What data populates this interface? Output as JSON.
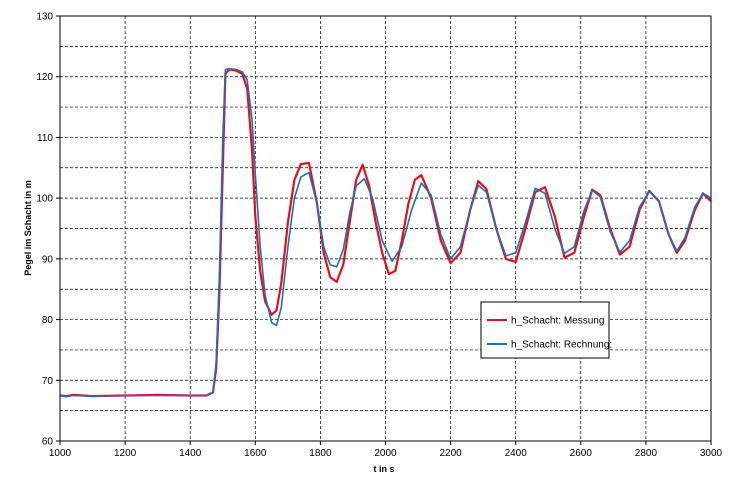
{
  "chart_data": {
    "type": "line",
    "title": "",
    "xlabel": "t in s",
    "ylabel": "Pegel im Schacht in m",
    "xlim": [
      1000,
      3000
    ],
    "ylim": [
      60,
      130
    ],
    "x_ticks": [
      1000,
      1200,
      1400,
      1600,
      1800,
      2000,
      2200,
      2400,
      2600,
      2800,
      3000
    ],
    "y_ticks": [
      60,
      70,
      80,
      90,
      100,
      110,
      120,
      130
    ],
    "grid": true,
    "minor_grid_y_step": 5,
    "legend_position": "center-right",
    "series": [
      {
        "name": "h_Schacht: Messung",
        "color": "#e3101a",
        "x": [
          1000,
          1020,
          1040,
          1100,
          1200,
          1300,
          1400,
          1450,
          1470,
          1480,
          1490,
          1500,
          1508,
          1520,
          1540,
          1560,
          1575,
          1590,
          1600,
          1615,
          1630,
          1650,
          1665,
          1680,
          1700,
          1720,
          1740,
          1765,
          1790,
          1810,
          1830,
          1850,
          1870,
          1890,
          1910,
          1930,
          1950,
          1970,
          1990,
          2010,
          2030,
          2050,
          2070,
          2090,
          2110,
          2140,
          2170,
          2200,
          2230,
          2260,
          2285,
          2310,
          2340,
          2370,
          2400,
          2430,
          2460,
          2490,
          2520,
          2550,
          2580,
          2610,
          2635,
          2660,
          2690,
          2720,
          2750,
          2780,
          2810,
          2840,
          2870,
          2895,
          2920,
          2950,
          2975,
          3000
        ],
        "y": [
          67.5,
          67.4,
          67.6,
          67.4,
          67.5,
          67.6,
          67.5,
          67.5,
          68.0,
          72.0,
          85.0,
          105.0,
          120.5,
          121.2,
          121.0,
          120.5,
          118.0,
          108.0,
          97.0,
          88.0,
          83.0,
          80.8,
          81.5,
          86.0,
          96.0,
          103.0,
          105.6,
          105.8,
          99.0,
          91.0,
          87.0,
          86.2,
          89.0,
          96.0,
          103.0,
          105.5,
          102.0,
          96.0,
          91.0,
          87.5,
          88.0,
          93.0,
          99.0,
          103.0,
          103.8,
          100.0,
          93.0,
          89.3,
          91.0,
          98.0,
          102.8,
          101.5,
          95.0,
          90.0,
          89.5,
          95.0,
          101.0,
          101.8,
          97.0,
          90.2,
          91.0,
          97.0,
          101.4,
          100.5,
          95.0,
          90.7,
          92.0,
          98.0,
          101.2,
          99.5,
          94.0,
          91.0,
          93.0,
          98.0,
          100.8,
          99.5
        ]
      },
      {
        "name": "h_Schacht: Rechnung:",
        "color": "#1f6fb4",
        "x": [
          1000,
          1020,
          1040,
          1100,
          1200,
          1300,
          1400,
          1450,
          1470,
          1480,
          1490,
          1500,
          1508,
          1520,
          1540,
          1560,
          1575,
          1590,
          1600,
          1615,
          1630,
          1650,
          1665,
          1680,
          1700,
          1720,
          1740,
          1765,
          1790,
          1810,
          1830,
          1850,
          1870,
          1890,
          1910,
          1935,
          1960,
          1990,
          2020,
          2050,
          2080,
          2110,
          2140,
          2170,
          2200,
          2230,
          2260,
          2285,
          2310,
          2340,
          2370,
          2400,
          2430,
          2460,
          2490,
          2520,
          2550,
          2580,
          2610,
          2635,
          2660,
          2690,
          2720,
          2750,
          2780,
          2810,
          2840,
          2870,
          2895,
          2920,
          2950,
          2975,
          3000
        ],
        "y": [
          67.5,
          67.3,
          67.5,
          67.4,
          67.5,
          67.5,
          67.5,
          67.5,
          68.0,
          73.0,
          88.0,
          110.0,
          121.2,
          121.3,
          121.2,
          120.8,
          119.5,
          113.0,
          104.0,
          92.0,
          84.0,
          79.5,
          79.0,
          82.0,
          92.0,
          100.0,
          103.5,
          104.2,
          99.0,
          92.0,
          89.0,
          88.7,
          91.5,
          97.5,
          102.0,
          103.2,
          100.0,
          93.0,
          89.6,
          92.0,
          98.0,
          102.5,
          100.5,
          94.0,
          90.0,
          92.0,
          98.0,
          102.1,
          101.0,
          95.0,
          90.5,
          91.0,
          96.0,
          101.6,
          100.8,
          95.0,
          90.9,
          92.0,
          98.0,
          101.3,
          100.2,
          94.5,
          91.1,
          93.0,
          98.5,
          101.1,
          99.6,
          94.0,
          91.3,
          93.5,
          98.5,
          100.8,
          100.0
        ]
      }
    ]
  }
}
